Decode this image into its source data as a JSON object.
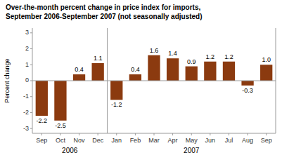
{
  "chart_data": {
    "type": "bar",
    "title": "Over-the-month percent change in price index for imports,",
    "subtitle": "September 2006-September 2007 (not seasonally adjusted)",
    "y_label": "Percent change",
    "categories": [
      "Sep",
      "Oct",
      "Nov",
      "Dec",
      "Jan",
      "Feb",
      "Mar",
      "Apr",
      "May",
      "Jun",
      "Jul",
      "Aug",
      "Sep"
    ],
    "values": [
      -2.2,
      -2.5,
      0.4,
      1.1,
      -1.2,
      0.4,
      1.6,
      1.4,
      0.9,
      1.2,
      1.2,
      -0.3,
      1.0
    ],
    "value_labels": [
      "-2.2",
      "-2.5",
      "0.4",
      "1.1",
      "-1.2",
      "0.4",
      "1.6",
      "1.4",
      "0.9",
      "1.2",
      "1.2",
      "-0.3",
      "1.0"
    ],
    "data_labels": true,
    "color": "#8B3A0F",
    "ylim": [
      -3.3,
      3.3
    ],
    "yticks": [
      -3,
      -2,
      -1,
      0,
      1,
      2,
      3
    ],
    "grid": false,
    "annotations": [
      {
        "text": "2006",
        "span": [
          0,
          3
        ]
      },
      {
        "text": "2007",
        "span": [
          4,
          12
        ]
      }
    ]
  }
}
